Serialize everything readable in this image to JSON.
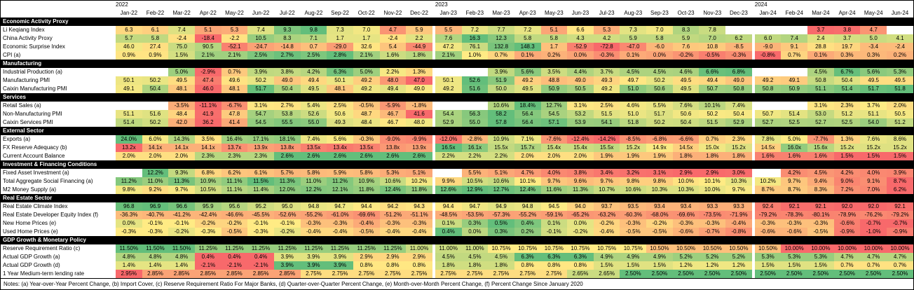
{
  "chart_data": {
    "type": "heatmap",
    "title": "China Economic Indicators Heatmap",
    "legend_position": "none",
    "grid": false,
    "colors": {
      "low": "#F8696B",
      "mid": "#FFEB84",
      "high": "#63BE7B",
      "section_bg": "#000000",
      "section_text": "#FFFFFF",
      "blank": "#FFFFFF"
    },
    "formats": {
      "plain1": {
        "decimals": 1,
        "suffix": ""
      },
      "pct1": {
        "decimals": 1,
        "suffix": "%"
      },
      "pct2": {
        "decimals": 2,
        "suffix": "%"
      },
      "x1": {
        "decimals": 1,
        "suffix": "x"
      }
    },
    "year_groups": [
      {
        "label": "2022",
        "count": 12
      },
      {
        "label": "2023",
        "count": 12
      },
      {
        "label": "2024",
        "count": 6
      }
    ],
    "columns": [
      "Jan-22",
      "Feb-22",
      "Mar-22",
      "Apr-22",
      "May-22",
      "Jun-22",
      "Jul-22",
      "Aug-22",
      "Sep-22",
      "Oct-22",
      "Nov-22",
      "Dec-22",
      "Jan-23",
      "Feb-23",
      "Mar-23",
      "Apr-23",
      "May-23",
      "Jun-23",
      "Jul-23",
      "Aug-23",
      "Sep-23",
      "Oct-23",
      "Nov-23",
      "Dec-23",
      "Jan-24",
      "Feb-24",
      "Mar-24",
      "Apr-24",
      "May-24",
      "Jun-24"
    ],
    "sections": [
      {
        "name": "Economic Activity Proxy",
        "rows": [
          {
            "label": "Li Keqiang Index",
            "fmt": "plain1",
            "values": [
              6.3,
              6.1,
              7.4,
              5.1,
              5.3,
              7.4,
              9.3,
              9.8,
              7.3,
              7.0,
              4.7,
              5.9,
              5.5,
              7.2,
              7.7,
              7.2,
              5.1,
              6.6,
              5.3,
              7.3,
              7.0,
              8.3,
              7.8,
              null,
              null,
              null,
              3.7,
              3.8,
              4.7,
              null
            ]
          },
          {
            "label": "China Activity Proxy",
            "fmt": "plain1",
            "values": [
              5.7,
              5.8,
              -2.4,
              -18.4,
              -2.2,
              10.5,
              8.3,
              7.1,
              1.7,
              1.7,
              -2.4,
              2.2,
              7.6,
              16.3,
              12.3,
              5.8,
              5.8,
              4.3,
              4.2,
              5.9,
              5.8,
              5.9,
              7.0,
              6.2,
              6.0,
              7.4,
              2.4,
              3.7,
              5.0,
              4.1
            ]
          },
          {
            "label": "Economic Surprise Index",
            "fmt": "plain1",
            "values": [
              46.0,
              27.4,
              75.0,
              90.5,
              -52.1,
              -24.7,
              -14.8,
              0.7,
              -29.0,
              32.6,
              5.4,
              -44.9,
              47.2,
              76.1,
              132.8,
              148.3,
              1.7,
              -52.9,
              -72.8,
              -47.0,
              -6.0,
              7.6,
              10.8,
              -8.5,
              -9.0,
              9.1,
              28.8,
              19.7,
              -3.4,
              -2.4
            ]
          },
          {
            "label": "CPI (a)",
            "fmt": "pct1",
            "values": [
              0.9,
              0.9,
              1.5,
              2.1,
              2.1,
              2.5,
              2.7,
              2.5,
              2.8,
              2.1,
              1.6,
              1.8,
              2.1,
              1.0,
              0.7,
              0.1,
              0.2,
              0.0,
              -0.3,
              0.1,
              0.0,
              -0.2,
              -0.5,
              -0.3,
              -0.8,
              0.7,
              0.1,
              0.3,
              0.3,
              0.2
            ]
          }
        ]
      },
      {
        "name": "Manufacturing",
        "rows": [
          {
            "label": "Industrial Production (a)",
            "fmt": "pct1",
            "values": [
              null,
              null,
              5.0,
              -2.9,
              0.7,
              3.9,
              3.8,
              4.2,
              6.3,
              5.0,
              2.2,
              1.3,
              null,
              null,
              3.9,
              5.6,
              3.5,
              4.4,
              3.7,
              4.5,
              4.5,
              4.6,
              6.6,
              6.8,
              null,
              null,
              4.5,
              6.7,
              5.6,
              5.3
            ]
          },
          {
            "label": "Manufacturing PMI",
            "fmt": "plain1",
            "values": [
              50.1,
              50.2,
              49.5,
              47.4,
              49.6,
              50.2,
              49.0,
              49.4,
              50.1,
              49.2,
              48.0,
              47.0,
              50.1,
              52.6,
              51.9,
              49.2,
              48.8,
              49.0,
              49.3,
              49.7,
              50.2,
              49.5,
              49.4,
              49.0,
              49.2,
              49.1,
              50.8,
              50.4,
              49.5,
              49.5
            ]
          },
          {
            "label": "Caixin Manufacturing PMI",
            "fmt": "plain1",
            "values": [
              49.1,
              50.4,
              48.1,
              46.0,
              48.1,
              51.7,
              50.4,
              49.5,
              48.1,
              49.2,
              49.4,
              49.0,
              49.2,
              51.6,
              50.0,
              49.5,
              50.9,
              50.5,
              49.2,
              51.0,
              50.6,
              49.5,
              50.7,
              50.8,
              50.8,
              50.9,
              51.1,
              51.4,
              51.7,
              51.8
            ]
          }
        ]
      },
      {
        "name": "Services",
        "rows": [
          {
            "label": "Retail Sales (a)",
            "fmt": "pct1",
            "values": [
              null,
              null,
              -3.5,
              -11.1,
              -6.7,
              3.1,
              2.7,
              5.4,
              2.5,
              -0.5,
              -5.9,
              -1.8,
              null,
              null,
              10.6,
              18.4,
              12.7,
              3.1,
              2.5,
              4.6,
              5.5,
              7.6,
              10.1,
              7.4,
              null,
              null,
              3.1,
              2.3,
              3.7,
              2.0
            ]
          },
          {
            "label": "Non-Manufacturing PMI",
            "fmt": "plain1",
            "values": [
              51.1,
              51.6,
              48.4,
              41.9,
              47.8,
              54.7,
              53.8,
              52.6,
              50.6,
              48.7,
              46.7,
              41.6,
              54.4,
              56.3,
              58.2,
              56.4,
              54.5,
              53.2,
              51.5,
              51.0,
              51.7,
              50.6,
              50.2,
              50.4,
              50.7,
              51.4,
              53.0,
              51.2,
              51.1,
              50.5
            ]
          },
          {
            "label": "Caixin Services PMI",
            "fmt": "plain1",
            "values": [
              51.4,
              50.2,
              42.0,
              36.2,
              41.4,
              54.5,
              55.5,
              55.0,
              49.3,
              48.4,
              46.7,
              48.0,
              52.9,
              55.0,
              57.8,
              56.4,
              57.1,
              53.9,
              54.1,
              51.8,
              50.2,
              50.4,
              51.5,
              52.9,
              52.7,
              52.5,
              52.7,
              52.5,
              54.0,
              51.2
            ]
          }
        ]
      },
      {
        "name": "External Sector",
        "rows": [
          {
            "label": "Exports (a)",
            "fmt": "pct1",
            "values": [
              24.0,
              6.0,
              14.3,
              3.5,
              16.4,
              17.1,
              18.1,
              7.4,
              5.6,
              -0.3,
              -9.0,
              -9.9,
              -12.0,
              -2.8,
              10.9,
              7.1,
              -7.6,
              -12.4,
              -14.2,
              -8.5,
              -6.8,
              -6.6,
              0.7,
              2.3,
              7.8,
              5.0,
              -7.7,
              1.3,
              7.6,
              8.6
            ]
          },
          {
            "label": "FX Reserve Adequacy (b)",
            "fmt": "x1",
            "values": [
              13.2,
              14.1,
              14.1,
              14.1,
              13.7,
              13.9,
              13.8,
              13.5,
              13.4,
              13.5,
              13.8,
              13.9,
              16.5,
              16.1,
              15.5,
              15.7,
              15.4,
              15.4,
              15.5,
              15.2,
              14.9,
              14.5,
              15.0,
              15.2,
              14.5,
              16.0,
              15.6,
              15.2,
              15.2,
              15.2
            ]
          },
          {
            "label": "Current Account Balance",
            "fmt": "pct1",
            "values": [
              2.0,
              2.0,
              2.0,
              2.3,
              2.3,
              2.3,
              2.6,
              2.6,
              2.6,
              2.6,
              2.6,
              2.6,
              2.2,
              2.2,
              2.2,
              2.0,
              2.0,
              2.0,
              1.9,
              1.9,
              1.9,
              1.8,
              1.8,
              1.8,
              1.6,
              1.6,
              1.6,
              1.5,
              1.5,
              1.5
            ]
          }
        ]
      },
      {
        "name": "Investment & Financing Conditions",
        "rows": [
          {
            "label": "Fixed Asset Investment (a)",
            "fmt": "pct1",
            "values": [
              null,
              12.2,
              9.3,
              6.8,
              6.2,
              6.1,
              5.7,
              5.8,
              5.9,
              5.8,
              5.3,
              5.1,
              null,
              5.5,
              5.1,
              4.7,
              4.0,
              3.8,
              3.4,
              3.2,
              3.1,
              2.9,
              2.9,
              3.0,
              null,
              4.2,
              4.5,
              4.2,
              4.0,
              3.9
            ]
          },
          {
            "label": "Total Aggregate Social Financing (a)",
            "fmt": "pct1",
            "values": [
              11.2,
              11.0,
              11.3,
              10.9,
              11.1,
              11.5,
              11.3,
              11.0,
              11.2,
              10.9,
              10.6,
              10.2,
              9.9,
              10.5,
              10.6,
              10.1,
              9.7,
              9.6,
              9.7,
              9.8,
              9.8,
              10.0,
              10.1,
              10.3,
              10.2,
              9.7,
              9.4,
              9.0,
              9.1,
              8.7
            ]
          },
          {
            "label": "M2 Money Supply (a)",
            "fmt": "pct1",
            "values": [
              9.8,
              9.2,
              9.7,
              10.5,
              11.1,
              11.4,
              12.0,
              12.2,
              12.1,
              11.8,
              12.4,
              11.8,
              12.6,
              12.9,
              12.7,
              12.4,
              11.6,
              11.3,
              10.7,
              10.6,
              10.3,
              10.3,
              10.0,
              9.7,
              8.7,
              8.7,
              8.3,
              7.2,
              7.0,
              6.2
            ]
          }
        ]
      },
      {
        "name": "Real Estate Sector",
        "rows": [
          {
            "label": "Real Estate Climate Index",
            "fmt": "plain1",
            "values": [
              96.8,
              96.9,
              96.6,
              95.9,
              95.6,
              95.2,
              95.0,
              94.8,
              94.7,
              94.4,
              94.2,
              94.3,
              94.4,
              94.7,
              94.9,
              94.8,
              94.5,
              94.0,
              93.7,
              93.5,
              93.4,
              93.4,
              93.3,
              93.3,
              92.4,
              92.1,
              92.1,
              92.0,
              92.0,
              92.1
            ]
          },
          {
            "label": "Real Estate Developer Equity Index (f)",
            "fmt": "pct1",
            "scale": {
              "min": -100,
              "mid": 0,
              "max": 100
            },
            "values": [
              -36.3,
              -40.7,
              -41.2,
              -42.4,
              -46.6,
              -45.5,
              -52.6,
              -55.2,
              -61.0,
              -69.6,
              -51.2,
              -51.1,
              -48.5,
              -53.5,
              -57.3,
              -55.2,
              -59.1,
              -65.2,
              -63.2,
              -60.3,
              -68.0,
              -69.6,
              -73.5,
              -71.9,
              -79.2,
              -78.3,
              -80.1,
              -78.9,
              -76.2,
              -79.2
            ]
          },
          {
            "label": "New Home Prices (e)",
            "fmt": "pct1",
            "values": [
              0.0,
              -0.1,
              -0.1,
              -0.2,
              -0.2,
              -0.1,
              -0.1,
              -0.3,
              -0.3,
              -0.4,
              -0.3,
              -0.3,
              0.1,
              0.3,
              0.5,
              0.4,
              0.1,
              0.0,
              -0.2,
              -0.3,
              -0.2,
              -0.3,
              -0.3,
              -0.4,
              -0.3,
              -0.3,
              -0.3,
              -0.6,
              -0.7,
              -0.7
            ]
          },
          {
            "label": "Used Home Prices (e)",
            "fmt": "pct1",
            "values": [
              -0.3,
              -0.3,
              -0.2,
              -0.3,
              -0.5,
              -0.3,
              -0.2,
              -0.4,
              -0.4,
              -0.5,
              -0.4,
              -0.4,
              0.4,
              0.0,
              0.3,
              0.2,
              -0.1,
              -0.2,
              -0.4,
              -0.5,
              -0.5,
              -0.6,
              -0.7,
              -0.8,
              -0.6,
              -0.6,
              -0.5,
              -0.9,
              -1.0,
              -0.9
            ]
          }
        ]
      },
      {
        "name": "GDP Growth & Monetary Policy",
        "rows": [
          {
            "label": "Reserve Requirement Ratio (c)",
            "fmt": "pct2",
            "values": [
              11.5,
              11.5,
              11.5,
              11.25,
              11.25,
              11.25,
              11.25,
              11.25,
              11.25,
              11.25,
              11.25,
              11.0,
              11.0,
              11.0,
              10.75,
              10.75,
              10.75,
              10.75,
              10.75,
              10.75,
              10.5,
              10.5,
              10.5,
              10.5,
              10.5,
              10.0,
              10.0,
              10.0,
              10.0,
              10.0
            ]
          },
          {
            "label": "Actual GDP Growth (a)",
            "fmt": "pct1",
            "values": [
              4.8,
              4.8,
              4.8,
              0.4,
              0.4,
              0.4,
              3.9,
              3.9,
              3.9,
              2.9,
              2.9,
              2.9,
              4.5,
              4.5,
              4.5,
              6.3,
              6.3,
              6.3,
              4.9,
              4.9,
              4.9,
              5.2,
              5.2,
              5.2,
              5.3,
              5.3,
              5.3,
              4.7,
              4.7,
              4.7
            ]
          },
          {
            "label": "Actual GDP Growth (d)",
            "fmt": "pct1",
            "values": [
              1.4,
              1.4,
              1.4,
              -2.1,
              -2.1,
              -2.1,
              3.9,
              3.9,
              3.9,
              0.8,
              0.8,
              0.8,
              1.8,
              1.8,
              1.8,
              0.8,
              0.8,
              0.8,
              1.5,
              1.5,
              1.5,
              1.2,
              1.2,
              1.2,
              1.5,
              1.5,
              1.5,
              0.7,
              0.7,
              0.7
            ]
          },
          {
            "label": "1 Year Medium-term lending rate",
            "fmt": "pct2",
            "reverse": true,
            "values": [
              2.95,
              2.85,
              2.85,
              2.85,
              2.85,
              2.85,
              2.85,
              2.75,
              2.75,
              2.75,
              2.75,
              2.75,
              2.75,
              2.75,
              2.75,
              2.75,
              2.75,
              2.65,
              2.65,
              2.5,
              2.5,
              2.5,
              2.5,
              2.5,
              2.5,
              2.5,
              2.5,
              2.5,
              2.5,
              2.5
            ]
          }
        ]
      }
    ],
    "notes": "Notes: (a) Year-over-Year Percent Change, (b) Import Cover, (c) Reserve Requirement Ratio For Major Banks, (d) Quarter-over-Quarter Percent Change, (e) Month-over-Month Percent Change, (f) Percent Change Since January 2020"
  }
}
